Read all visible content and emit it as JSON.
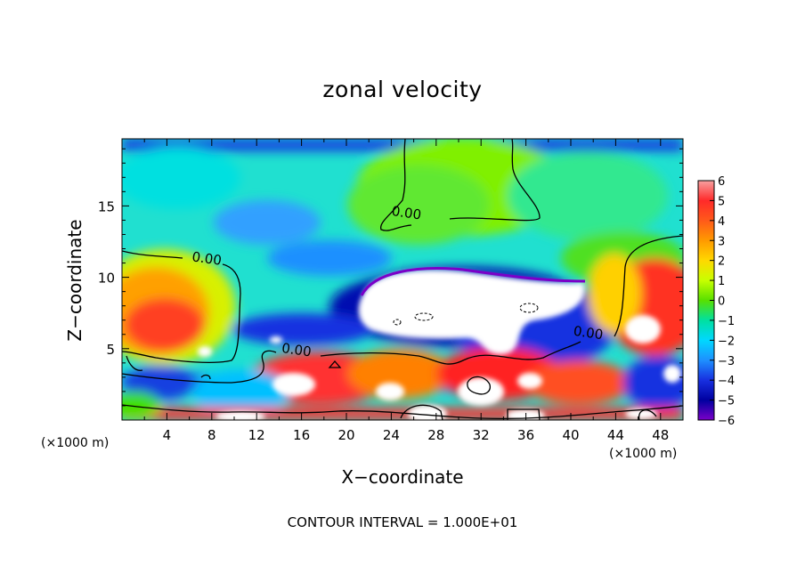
{
  "chart_data": {
    "type": "heatmap",
    "title": "zonal velocity",
    "xlabel": "X−coordinate",
    "ylabel": "Z−coordinate",
    "x_unit_left": "(×1000 m)",
    "x_unit_right": "(×1000 m)",
    "footer": "CONTOUR INTERVAL = 1.000E+01",
    "xlim": [
      0,
      50
    ],
    "ylim": [
      0,
      19.7
    ],
    "x_ticks": [
      4,
      8,
      12,
      16,
      20,
      24,
      28,
      32,
      36,
      40,
      44,
      48
    ],
    "y_ticks": [
      5,
      10,
      15
    ],
    "colorbar": {
      "range": [
        -6,
        6
      ],
      "ticks": [
        6,
        5,
        4,
        3,
        2,
        1,
        0,
        -1,
        -2,
        -3,
        -4,
        -5,
        -6
      ],
      "tick_labels": [
        "6",
        "5",
        "4",
        "3",
        "2",
        "1",
        "0",
        "−1",
        "−2",
        "−3",
        "−4",
        "−5",
        "−6"
      ],
      "colors": [
        "#f6a0a0",
        "#ff2a2a",
        "#ff5a1a",
        "#ff9a00",
        "#ffd800",
        "#c8ff00",
        "#58e000",
        "#00e0a0",
        "#00d8ff",
        "#1e90ff",
        "#1830e0",
        "#0000a0",
        "#7a00c8"
      ],
      "outside_range_color": "#ffffff"
    },
    "contour_labels": [
      {
        "text": "0.00",
        "x": 7.5,
        "y": 11.0
      },
      {
        "text": "0.00",
        "x": 25.3,
        "y": 14.2
      },
      {
        "text": "0.00",
        "x": 15.5,
        "y": 4.6
      },
      {
        "text": "0.00",
        "x": 41.5,
        "y": 5.8
      }
    ]
  }
}
